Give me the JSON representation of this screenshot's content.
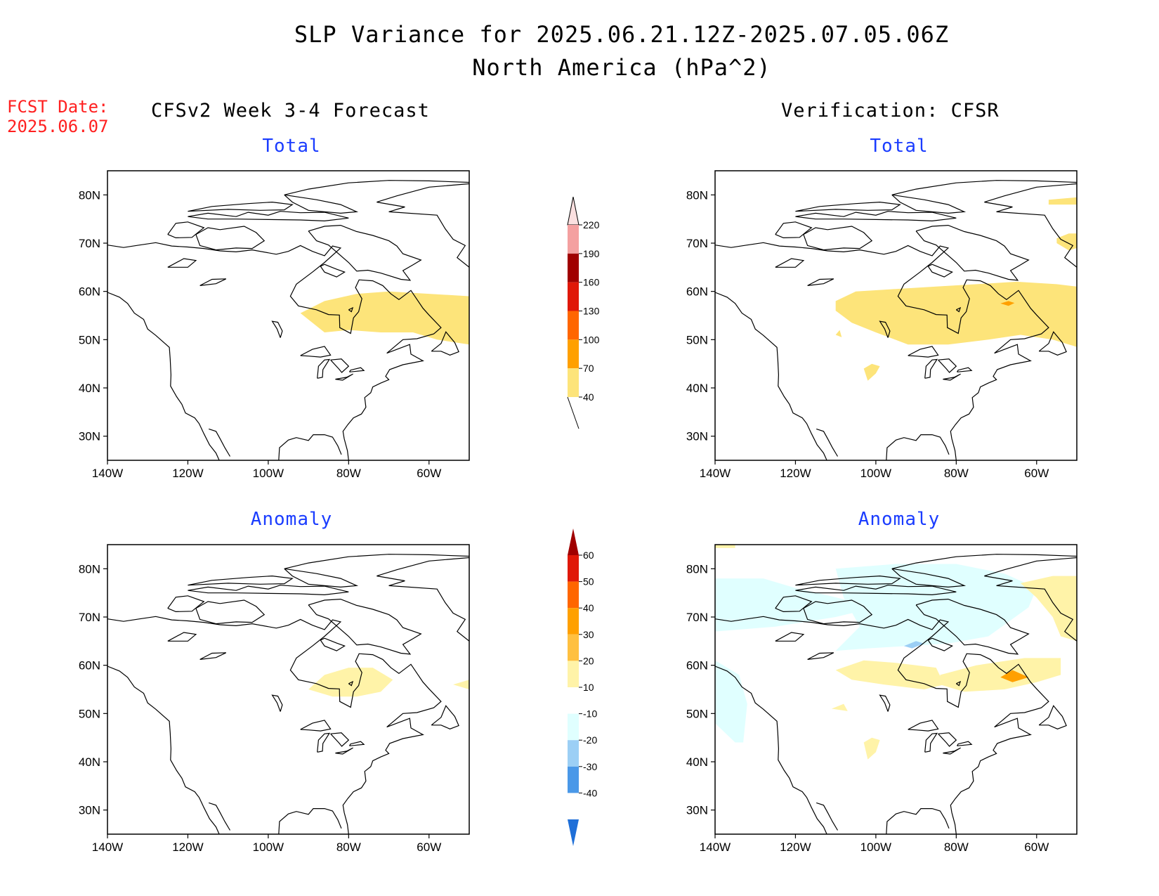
{
  "header": {
    "title_line1": "SLP Variance for 2025.06.21.12Z-2025.07.05.06Z",
    "title_line2": "North America (hPa^2)",
    "fcst_label": "FCST Date:",
    "fcst_date": "2025.06.07"
  },
  "columns": {
    "left": "CFSv2 Week 3-4 Forecast",
    "right": "Verification: CFSR"
  },
  "panels": [
    {
      "id": "fcst-total",
      "title": "Total"
    },
    {
      "id": "verif-total",
      "title": "Total"
    },
    {
      "id": "fcst-anomaly",
      "title": "Anomaly"
    },
    {
      "id": "verif-anomaly",
      "title": "Anomaly"
    }
  ],
  "axes": {
    "lat_labels": [
      "80N",
      "70N",
      "60N",
      "50N",
      "40N",
      "30N"
    ],
    "lon_labels": [
      "140W",
      "120W",
      "100W",
      "80W",
      "60W"
    ],
    "lon_range": [
      -140,
      -50
    ],
    "lat_range": [
      25,
      85
    ]
  },
  "colorbar_total": {
    "labels": [
      "220",
      "190",
      "160",
      "130",
      "100",
      "70",
      "40"
    ],
    "colors": [
      "#fbe0e0",
      "#f4a0a0",
      "#a00000",
      "#e01808",
      "#ff6600",
      "#ffa000",
      "#fde47a"
    ]
  },
  "colorbar_anomaly": {
    "labels": [
      "60",
      "50",
      "40",
      "30",
      "20",
      "10",
      "-10",
      "-20",
      "-30",
      "-40"
    ],
    "colors": [
      "#a00000",
      "#e01808",
      "#ff6600",
      "#ffa000",
      "#ffc040",
      "#fff3a8",
      "#ffffff",
      "#e0ffff",
      "#9ccff5",
      "#4a98e8",
      "#1f6fd8"
    ]
  }
}
